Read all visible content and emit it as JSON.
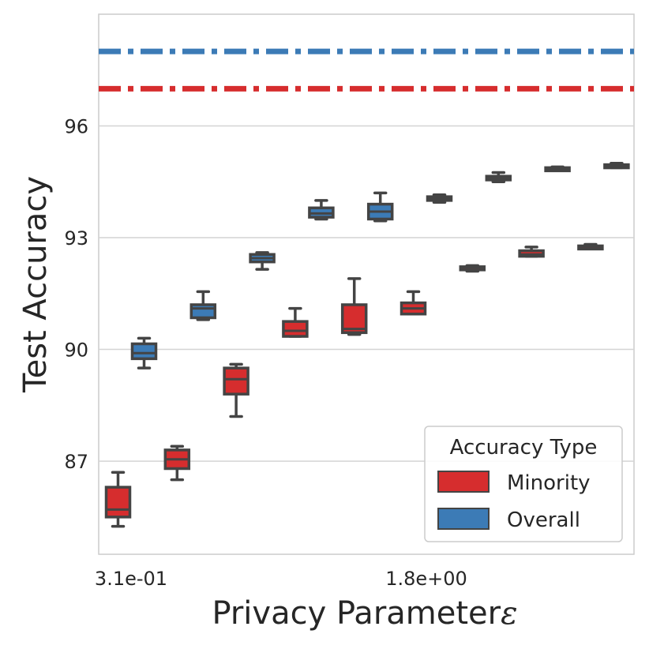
{
  "chart_data": {
    "type": "box",
    "xlabel": "Privacy Parameter",
    "xlabel_symbol": "ε",
    "ylabel": "Test Accuracy",
    "ylim": [
      84.5,
      99.0
    ],
    "yticks": [
      87,
      90,
      93,
      96
    ],
    "ytick_labels": [
      "87",
      "90",
      "93",
      "96"
    ],
    "xtick_labels": [
      {
        "group": 0,
        "label": "3.1e-01"
      },
      {
        "group": 5,
        "label": "1.8e+00"
      }
    ],
    "grid": true,
    "legend": {
      "title": "Accuracy Type",
      "position": "lower-right",
      "entries": [
        "Minority",
        "Overall"
      ]
    },
    "colors": {
      "Minority": "#d62d2e",
      "Overall": "#3c7bb6",
      "edge": "#444444"
    },
    "baselines": [
      {
        "series": "Overall",
        "value": 98.0
      },
      {
        "series": "Minority",
        "value": 97.0
      }
    ],
    "series": [
      {
        "name": "Minority",
        "boxes": [
          {
            "min": 85.25,
            "q1": 85.5,
            "median": 85.7,
            "q3": 86.3,
            "max": 86.7
          },
          {
            "min": 86.5,
            "q1": 86.8,
            "median": 87.05,
            "q3": 87.3,
            "max": 87.4
          },
          {
            "min": 88.2,
            "q1": 88.8,
            "median": 89.2,
            "q3": 89.5,
            "max": 89.6
          },
          {
            "min": 90.35,
            "q1": 90.35,
            "median": 90.5,
            "q3": 90.75,
            "max": 91.1
          },
          {
            "min": 90.4,
            "q1": 90.45,
            "median": 90.55,
            "q3": 91.2,
            "max": 91.9
          },
          {
            "min": 90.95,
            "q1": 90.95,
            "median": 91.1,
            "q3": 91.25,
            "max": 91.55
          },
          {
            "min": 92.1,
            "q1": 92.15,
            "median": 92.2,
            "q3": 92.22,
            "max": 92.25
          },
          {
            "min": 92.5,
            "q1": 92.5,
            "median": 92.55,
            "q3": 92.65,
            "max": 92.75
          },
          {
            "min": 92.7,
            "q1": 92.73,
            "median": 92.76,
            "q3": 92.78,
            "max": 92.82
          }
        ]
      },
      {
        "name": "Overall",
        "boxes": [
          {
            "min": 89.5,
            "q1": 89.75,
            "median": 89.9,
            "q3": 90.15,
            "max": 90.3
          },
          {
            "min": 90.8,
            "q1": 90.85,
            "median": 91.1,
            "q3": 91.2,
            "max": 91.55
          },
          {
            "min": 92.15,
            "q1": 92.35,
            "median": 92.45,
            "q3": 92.55,
            "max": 92.6
          },
          {
            "min": 93.5,
            "q1": 93.55,
            "median": 93.65,
            "q3": 93.8,
            "max": 94.0
          },
          {
            "min": 93.45,
            "q1": 93.5,
            "median": 93.7,
            "q3": 93.9,
            "max": 94.2
          },
          {
            "min": 93.95,
            "q1": 94.0,
            "median": 94.05,
            "q3": 94.1,
            "max": 94.15
          },
          {
            "min": 94.5,
            "q1": 94.55,
            "median": 94.6,
            "q3": 94.65,
            "max": 94.75
          },
          {
            "min": 94.8,
            "q1": 94.82,
            "median": 94.85,
            "q3": 94.88,
            "max": 94.9
          },
          {
            "min": 94.88,
            "q1": 94.9,
            "median": 94.93,
            "q3": 94.96,
            "max": 95.0
          }
        ]
      }
    ]
  }
}
